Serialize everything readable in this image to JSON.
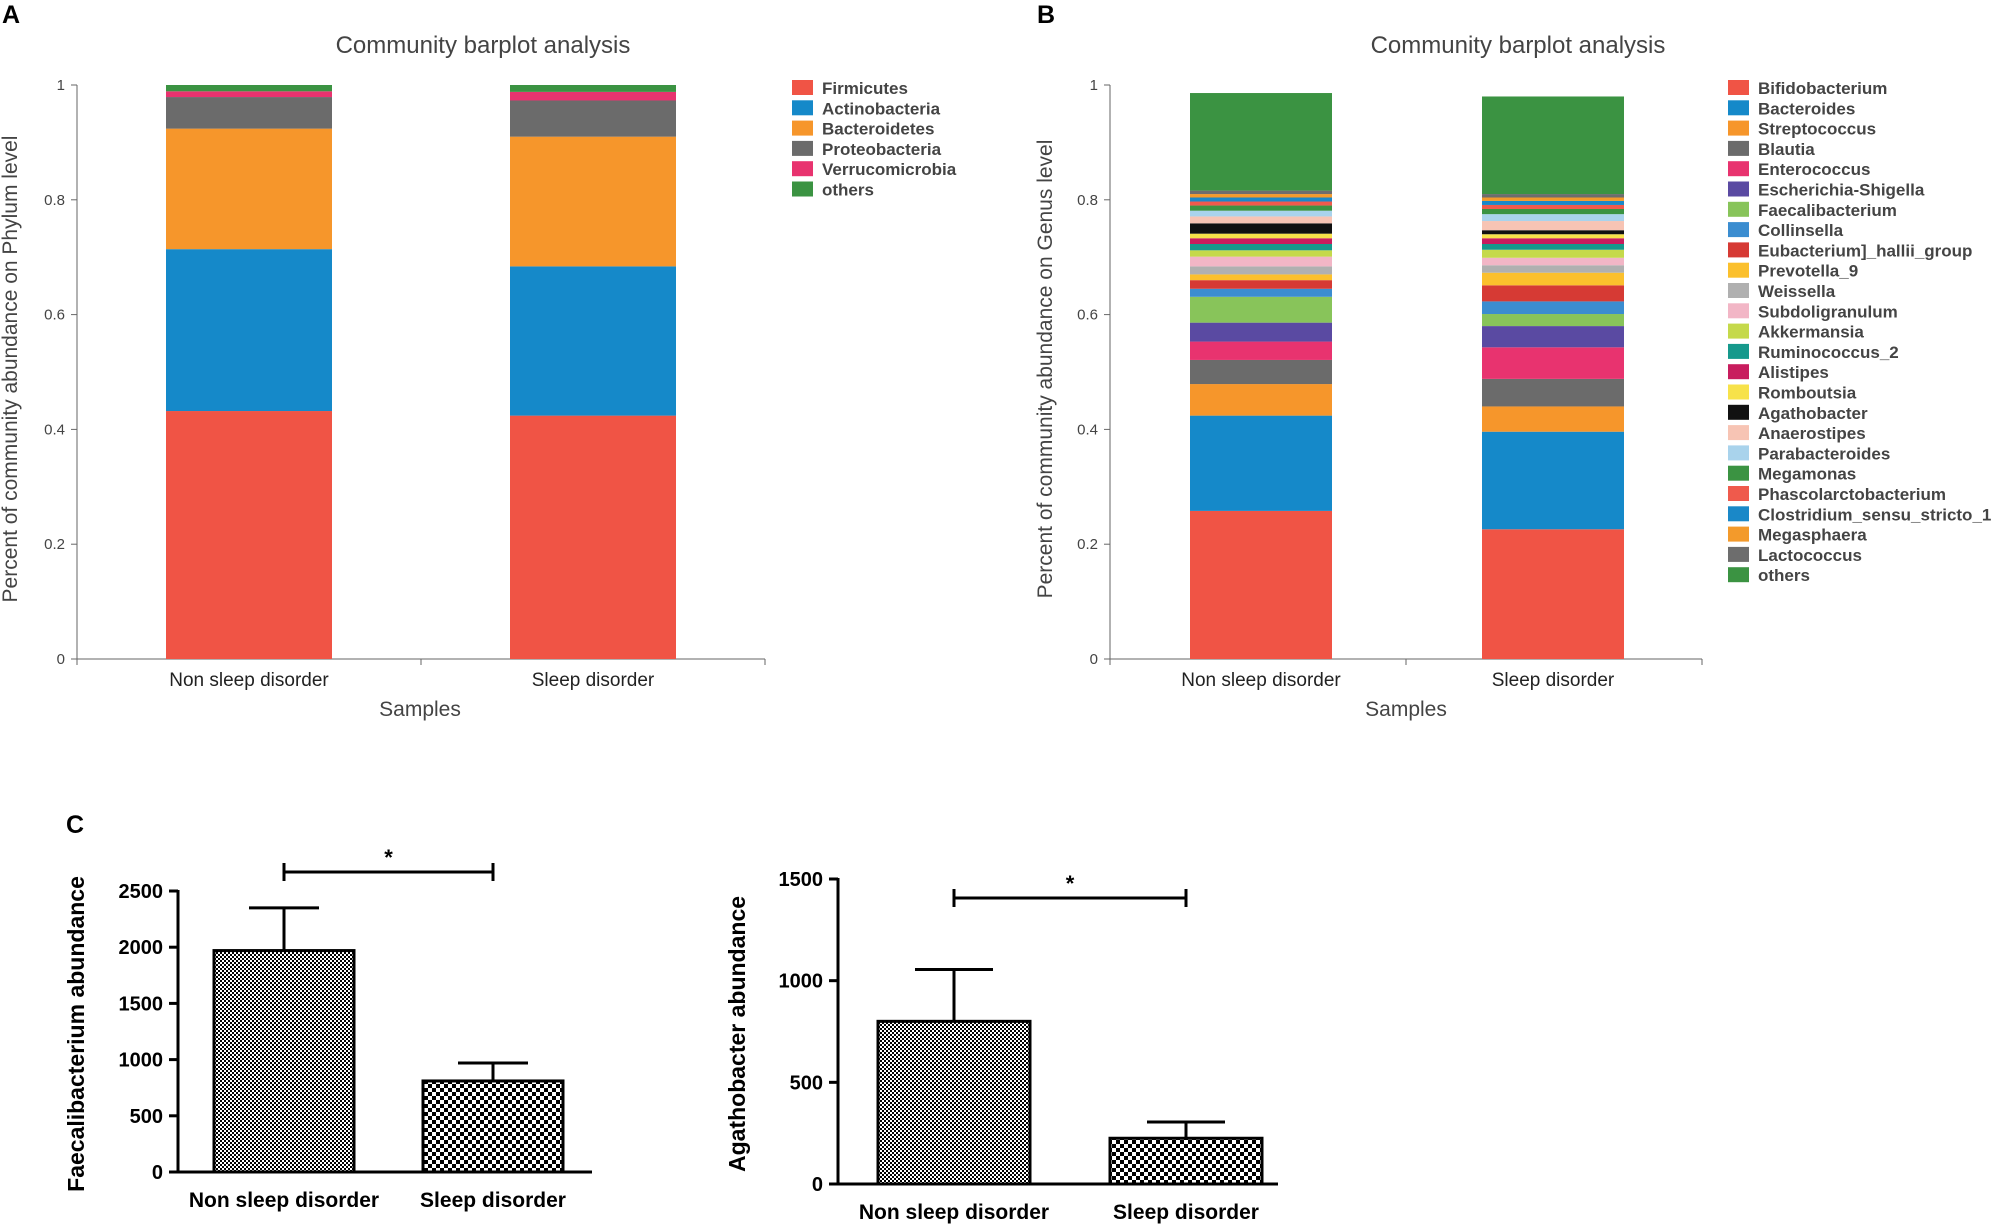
{
  "colors": {
    "phylum": [
      "#f05445",
      "#1589c9",
      "#f6962b",
      "#6b6b6b",
      "#e8336f",
      "#3b9342"
    ],
    "genus": [
      "#f05445",
      "#1589c9",
      "#f6962b",
      "#6b6b6b",
      "#e8336f",
      "#5a4aa2",
      "#88c45a",
      "#3b8dd0",
      "#d63a34",
      "#fbc02d",
      "#b0b0b0",
      "#f2b6c6",
      "#c5d94b",
      "#16998c",
      "#c81d5e",
      "#f7e24a",
      "#111111",
      "#f7c4b4",
      "#a9d3ec",
      "#3b9342",
      "#ef5a4c",
      "#1a88c8",
      "#f39a2b",
      "#6d6d6d",
      "#3b9342"
    ],
    "axis": "#666666",
    "bar_c": "#000000"
  },
  "chart_data": [
    {
      "panel": "A",
      "type": "bar",
      "stacked": true,
      "title": "Community barplot analysis",
      "xlabel": "Samples",
      "ylabel": "Percent of community abundance on Phylum level",
      "ylim": [
        0,
        1
      ],
      "yticks": [
        "0",
        "0.2",
        "0.4",
        "0.6",
        "0.8",
        "1"
      ],
      "categories": [
        "Non sleep disorder",
        "Sleep disorder"
      ],
      "legend": "right",
      "series": [
        {
          "name": "Firmicutes",
          "values": [
            0.432,
            0.424
          ]
        },
        {
          "name": "Actinobacteria",
          "values": [
            0.282,
            0.26
          ]
        },
        {
          "name": "Bacteroidetes",
          "values": [
            0.21,
            0.226
          ]
        },
        {
          "name": "Proteobacteria",
          "values": [
            0.055,
            0.063
          ]
        },
        {
          "name": "Verrucomicrobia",
          "values": [
            0.01,
            0.015
          ]
        },
        {
          "name": "others",
          "values": [
            0.011,
            0.012
          ]
        }
      ]
    },
    {
      "panel": "B",
      "type": "bar",
      "stacked": true,
      "title": "Community barplot analysis",
      "xlabel": "Samples",
      "ylabel": "Percent of community abundance on Genus level",
      "ylim": [
        0,
        1
      ],
      "yticks": [
        "0",
        "0.2",
        "0.4",
        "0.6",
        "0.8",
        "1"
      ],
      "categories": [
        "Non sleep disorder",
        "Sleep disorder"
      ],
      "legend": "right",
      "series": [
        {
          "name": "Bifidobacterium",
          "values": [
            0.258,
            0.226
          ]
        },
        {
          "name": "Bacteroides",
          "values": [
            0.166,
            0.17
          ]
        },
        {
          "name": "Streptococcus",
          "values": [
            0.055,
            0.044
          ]
        },
        {
          "name": "Blautia",
          "values": [
            0.042,
            0.048
          ]
        },
        {
          "name": "Enterococcus",
          "values": [
            0.032,
            0.055
          ]
        },
        {
          "name": "Escherichia-Shigella",
          "values": [
            0.033,
            0.037
          ]
        },
        {
          "name": "Faecalibacterium",
          "values": [
            0.045,
            0.021
          ]
        },
        {
          "name": "Collinsella",
          "values": [
            0.014,
            0.022
          ]
        },
        {
          "name": "Eubacterium]_hallii_group",
          "values": [
            0.015,
            0.028
          ]
        },
        {
          "name": "Prevotella_9",
          "values": [
            0.01,
            0.022
          ]
        },
        {
          "name": "Weissella",
          "values": [
            0.014,
            0.013
          ]
        },
        {
          "name": "Subdoligranulum",
          "values": [
            0.017,
            0.013
          ]
        },
        {
          "name": "Akkermansia",
          "values": [
            0.011,
            0.014
          ]
        },
        {
          "name": "Ruminococcus_2",
          "values": [
            0.011,
            0.01
          ]
        },
        {
          "name": "Alistipes",
          "values": [
            0.01,
            0.01
          ]
        },
        {
          "name": "Romboutsia",
          "values": [
            0.008,
            0.007
          ]
        },
        {
          "name": "Agathobacter",
          "values": [
            0.018,
            0.007
          ]
        },
        {
          "name": "Anaerostipes",
          "values": [
            0.012,
            0.016
          ]
        },
        {
          "name": "Parabacteroides",
          "values": [
            0.01,
            0.012
          ]
        },
        {
          "name": "Megamonas",
          "values": [
            0.009,
            0.009
          ]
        },
        {
          "name": "Phascolarctobacterium",
          "values": [
            0.007,
            0.007
          ]
        },
        {
          "name": "Clostridium_sensu_stricto_1",
          "values": [
            0.007,
            0.007
          ]
        },
        {
          "name": "Megasphaera",
          "values": [
            0.006,
            0.006
          ]
        },
        {
          "name": "Lactococcus",
          "values": [
            0.006,
            0.006
          ]
        },
        {
          "name": "others",
          "values": [
            0.17,
            0.17
          ]
        }
      ]
    },
    {
      "panel": "C",
      "type": "bar",
      "ylabel": "Faecalibacterium abundance",
      "ylim": [
        0,
        2500
      ],
      "yticks": [
        "0",
        "500",
        "1000",
        "1500",
        "2000",
        "2500"
      ],
      "categories": [
        "Non sleep disorder",
        "Sleep disorder"
      ],
      "values": [
        1970,
        810
      ],
      "error": [
        380,
        160
      ],
      "significance": "*",
      "pattern": "checkered"
    },
    {
      "panel": "C",
      "type": "bar",
      "ylabel": "Agathobacter abundance",
      "ylim": [
        0,
        1500
      ],
      "yticks": [
        "0",
        "500",
        "1000",
        "1500"
      ],
      "categories": [
        "Non sleep disorder",
        "Sleep disorder"
      ],
      "values": [
        800,
        225
      ],
      "error": [
        255,
        80
      ],
      "significance": "*",
      "pattern": "checkered"
    }
  ],
  "panels": {
    "a": "A",
    "b": "B",
    "c": "C"
  }
}
